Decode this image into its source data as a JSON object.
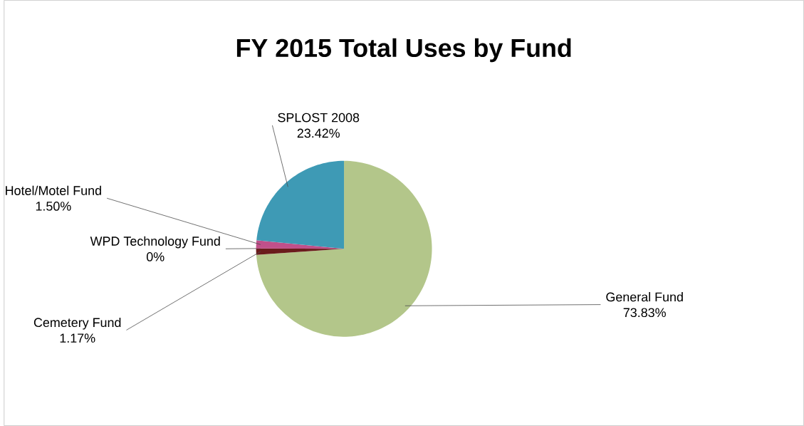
{
  "chart_data": {
    "type": "pie",
    "title": "FY 2015 Total Uses by Fund",
    "categories": [
      "General Fund",
      "Cemetery Fund",
      "WPD Technology Fund",
      "Hotel/Motel Fund",
      "SPLOST 2008"
    ],
    "values": [
      73.83,
      1.17,
      0,
      1.5,
      23.42
    ],
    "value_labels": [
      "73.83%",
      "1.17%",
      "0%",
      "1.50%",
      "23.42%"
    ],
    "colors": [
      "#b3c68a",
      "#6b1c1c",
      "#8064a2",
      "#c0508a",
      "#3e9ab5"
    ]
  }
}
